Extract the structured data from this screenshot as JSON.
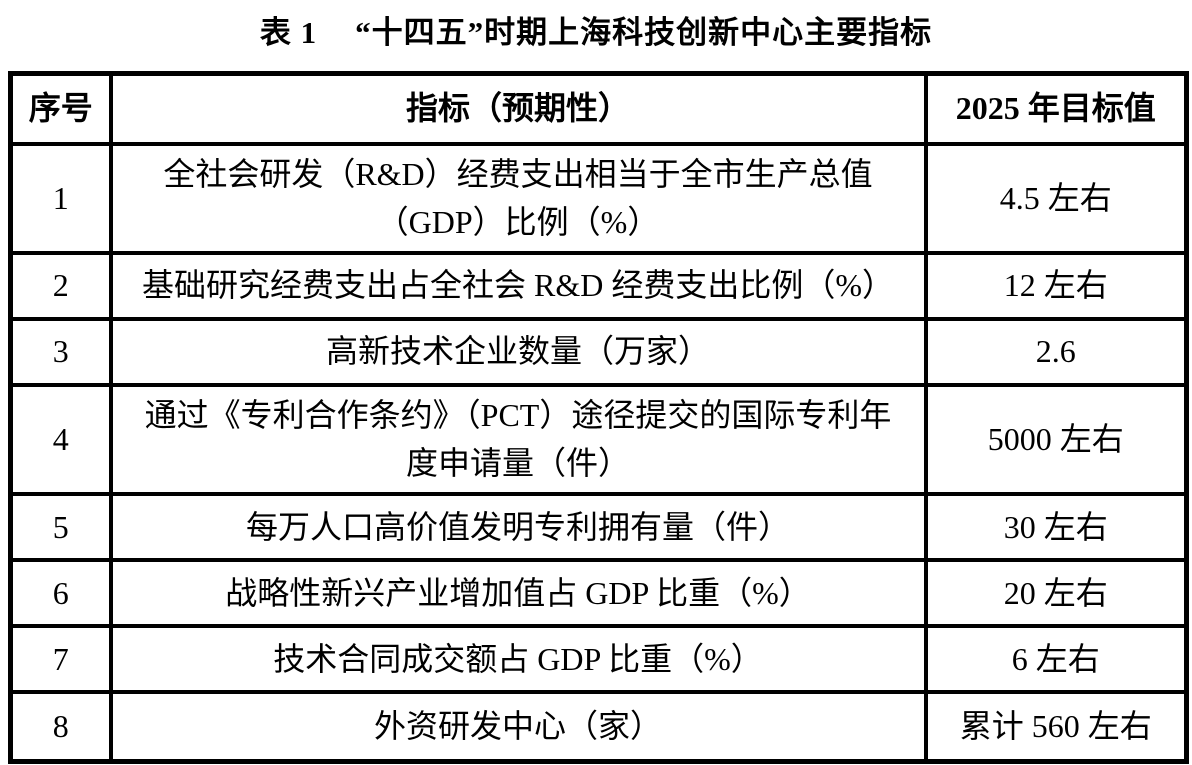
{
  "title": {
    "label": "表 1",
    "text": "“十四五”时期上海科技创新中心主要指标"
  },
  "table": {
    "headers": {
      "num": "序号",
      "indicator": "指标（预期性）",
      "target": "2025 年目标值"
    },
    "rows": [
      {
        "num": "1",
        "indicator": "全社会研发（R&D）经费支出相当于全市生产总值（GDP）比例（%）",
        "target": "4.5 左右"
      },
      {
        "num": "2",
        "indicator": "基础研究经费支出占全社会 R&D 经费支出比例（%）",
        "target": "12 左右"
      },
      {
        "num": "3",
        "indicator": "高新技术企业数量（万家）",
        "target": "2.6"
      },
      {
        "num": "4",
        "indicator": "通过《专利合作条约》（PCT）途径提交的国际专利年度申请量（件）",
        "target": "5000 左右"
      },
      {
        "num": "5",
        "indicator": "每万人口高价值发明专利拥有量（件）",
        "target": "30 左右"
      },
      {
        "num": "6",
        "indicator": "战略性新兴产业增加值占 GDP 比重（%）",
        "target": "20 左右"
      },
      {
        "num": "7",
        "indicator": "技术合同成交额占 GDP 比重（%）",
        "target": "6 左右"
      },
      {
        "num": "8",
        "indicator": "外资研发中心（家）",
        "target": "累计 560 左右"
      }
    ]
  },
  "colors": {
    "background": "#ffffff",
    "text": "#000000",
    "border": "#000000"
  }
}
